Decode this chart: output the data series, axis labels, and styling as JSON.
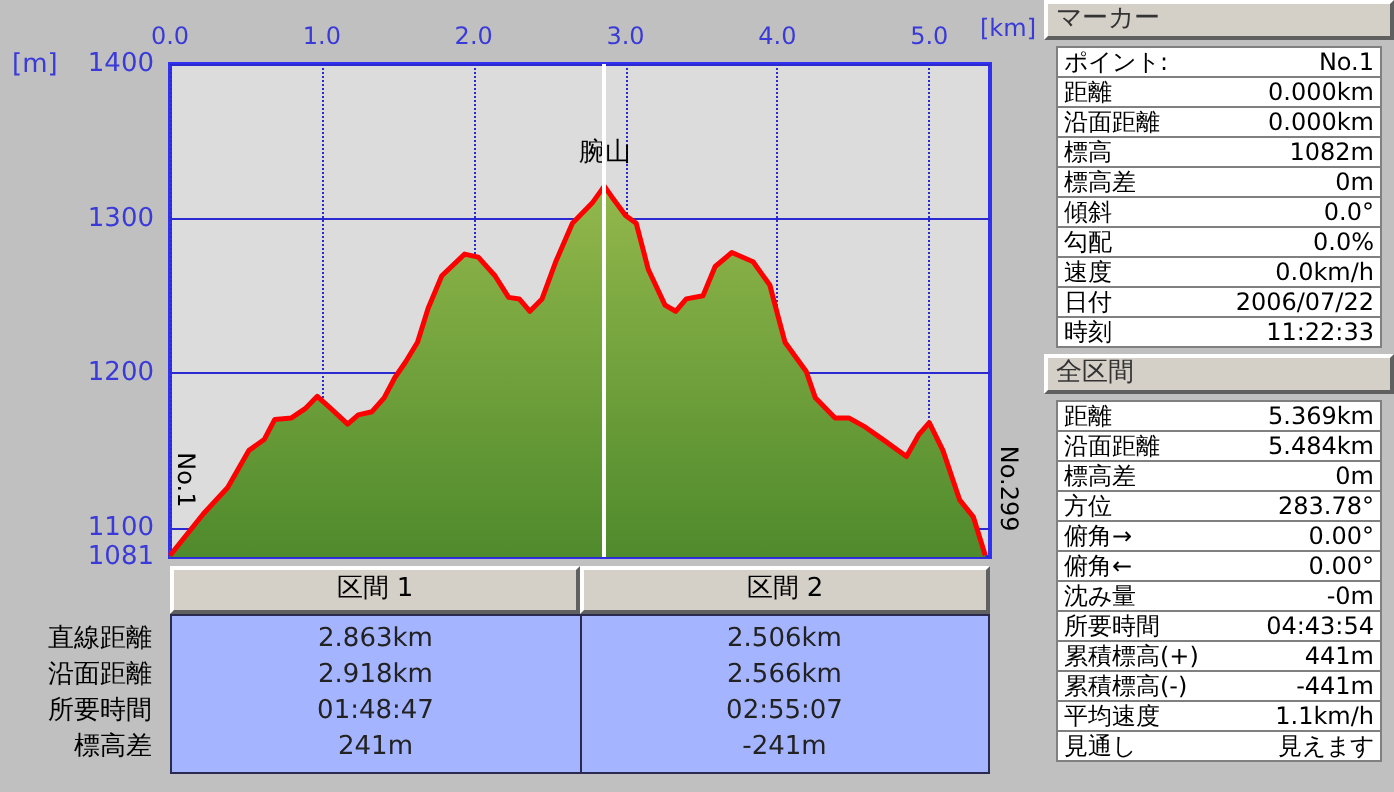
{
  "chart_data": [
    {
      "type": "area",
      "xlabel": "[km]",
      "ylabel": "[m]",
      "x": [
        0,
        0.22,
        0.38,
        0.52,
        0.62,
        0.69,
        0.8,
        0.89,
        0.97,
        1.06,
        1.17,
        1.24,
        1.33,
        1.41,
        1.48,
        1.55,
        1.63,
        1.7,
        1.79,
        1.94,
        2.03,
        2.14,
        2.23,
        2.3,
        2.37,
        2.45,
        2.54,
        2.65,
        2.78,
        2.86,
        2.91,
        3.0,
        3.07,
        3.15,
        3.26,
        3.33,
        3.4,
        3.51,
        3.59,
        3.7,
        3.84,
        3.95,
        3.99,
        4.05,
        4.19,
        4.25,
        4.38,
        4.47,
        4.58,
        4.71,
        4.85,
        4.93,
        5.0,
        5.09,
        5.2,
        5.29,
        5.369
      ],
      "series": [
        {
          "color": "#ff0000",
          "values": [
            1082,
            1109,
            1126,
            1150,
            1157,
            1170,
            1171,
            1177,
            1185,
            1177,
            1167,
            1173,
            1175,
            1184,
            1197,
            1207,
            1220,
            1242,
            1263,
            1277,
            1275,
            1263,
            1249,
            1248,
            1240,
            1248,
            1272,
            1297,
            1310,
            1321,
            1314,
            1302,
            1297,
            1267,
            1244,
            1240,
            1248,
            1250,
            1269,
            1278,
            1272,
            1257,
            1242,
            1220,
            1201,
            1184,
            1171,
            1171,
            1165,
            1156,
            1146,
            1160,
            1168,
            1150,
            1118,
            1107,
            1082
          ]
        }
      ],
      "xlim": [
        0,
        5.4
      ],
      "xticks": [
        {
          "value": 0,
          "label": "0.0"
        },
        {
          "value": 1,
          "label": "1.0"
        },
        {
          "value": 2,
          "label": "2.0"
        },
        {
          "value": 3,
          "label": "3.0"
        },
        {
          "value": 4,
          "label": "4.0"
        },
        {
          "value": 5,
          "label": "5.0"
        }
      ],
      "ylim": [
        1081,
        1400
      ],
      "yticks": [
        1081,
        1100,
        1200,
        1300,
        1400
      ],
      "grid": true,
      "ref_lines": [
        {
          "axis": "x",
          "value": 2.863,
          "color": "#ffffff"
        }
      ],
      "annotations": [
        {
          "text": "腕山",
          "x": 2.863,
          "y": 1321
        },
        {
          "text": "No.1",
          "x": 0,
          "y": 1082
        },
        {
          "text": "No.299",
          "x": 5.369,
          "y": 1082
        }
      ]
    },
    {
      "type": "other",
      "categories": [
        "区間 1",
        "区間 2"
      ],
      "y_categories": [
        "直線距離",
        "沿面距離",
        "所要時間",
        "標高差"
      ],
      "cell_labels": [
        [
          "2.863km",
          "2.506km"
        ],
        [
          "2.918km",
          "2.566km"
        ],
        [
          "01:48:47",
          "02:55:07"
        ],
        [
          "241m",
          "-241m"
        ]
      ]
    },
    {
      "type": "other",
      "title": "マーカー",
      "y_categories": [
        "ポイント:",
        "距離",
        "沿面距離",
        "標高",
        "標高差",
        "傾斜",
        "勾配",
        "速度",
        "日付",
        "時刻"
      ],
      "cell_labels": [
        [
          "No.1"
        ],
        [
          "0.000km"
        ],
        [
          "0.000km"
        ],
        [
          "1082m"
        ],
        [
          "0m"
        ],
        [
          "0.0°"
        ],
        [
          "0.0%"
        ],
        [
          "0.0km/h"
        ],
        [
          "2006/07/22"
        ],
        [
          "11:22:33"
        ]
      ]
    },
    {
      "type": "other",
      "title": "全区間",
      "y_categories": [
        "距離",
        "沿面距離",
        "標高差",
        "方位",
        "俯角→",
        "俯角←",
        "沈み量",
        "所要時間",
        "累積標高(+)",
        "累積標高(-)",
        "平均速度",
        "見通し"
      ],
      "cell_labels": [
        [
          "5.369km"
        ],
        [
          "5.484km"
        ],
        [
          "0m"
        ],
        [
          "283.78°"
        ],
        [
          "0.00°"
        ],
        [
          "0.00°"
        ],
        [
          "-0m"
        ],
        [
          "04:43:54"
        ],
        [
          "441m"
        ],
        [
          "-441m"
        ],
        [
          "1.1km/h"
        ],
        [
          "見えます"
        ]
      ]
    }
  ]
}
